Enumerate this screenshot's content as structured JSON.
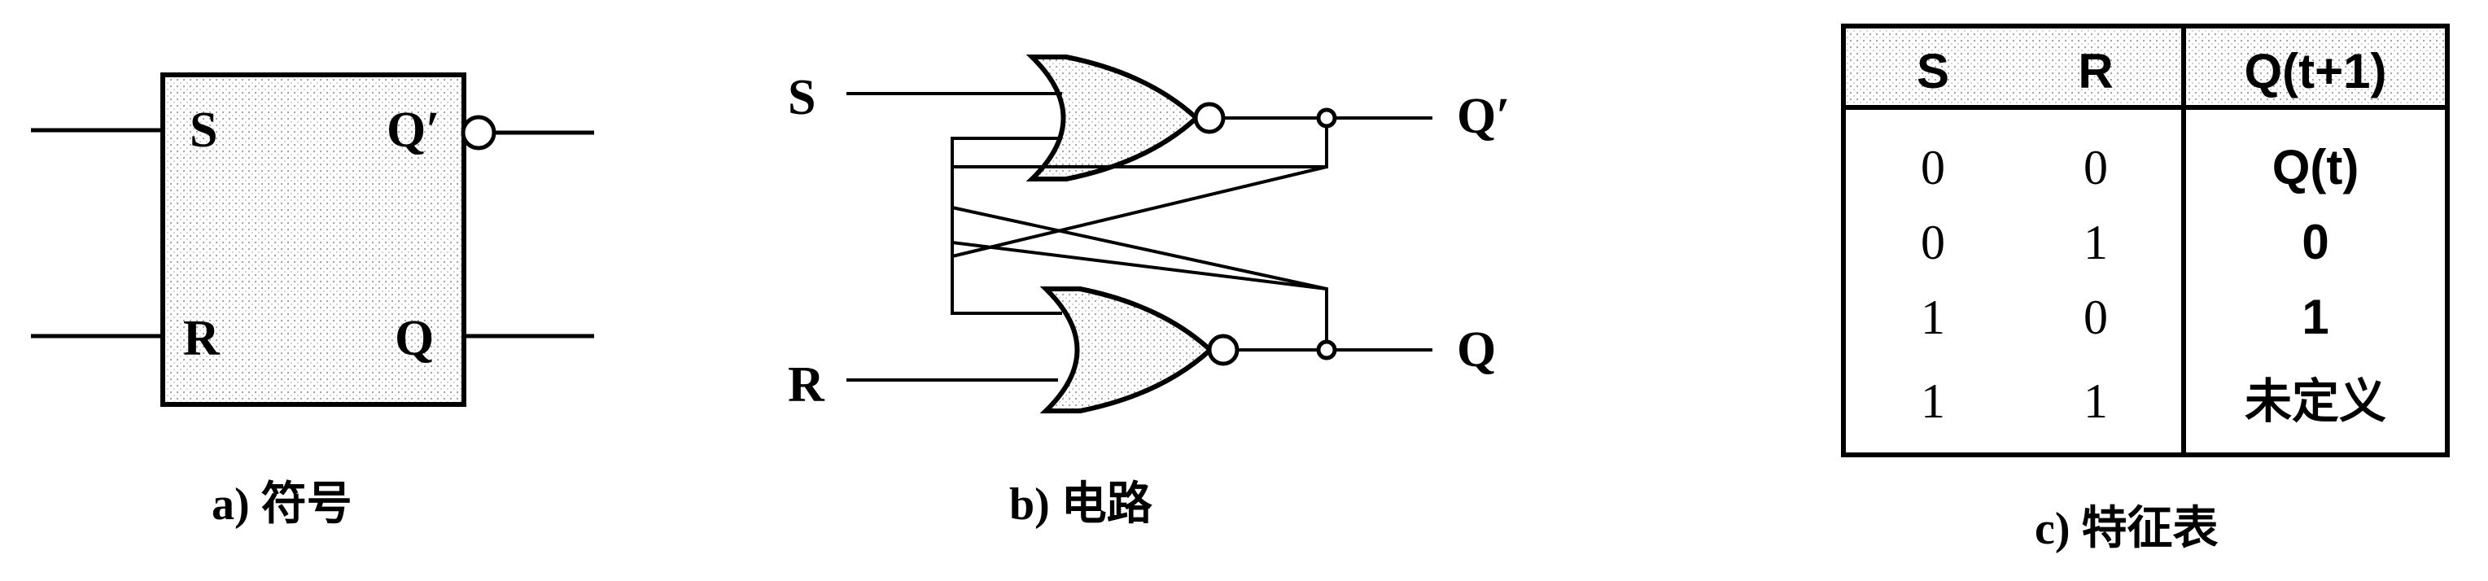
{
  "symbol": {
    "pin_s": "S",
    "pin_r": "R",
    "pin_q_prime": "Q′",
    "pin_q": "Q",
    "caption": "a) 符号"
  },
  "circuit": {
    "input_s": "S",
    "input_r": "R",
    "output_q_prime": "Q′",
    "output_q": "Q",
    "caption": "b) 电路"
  },
  "table": {
    "headers": [
      "S",
      "R",
      "Q(t+1)"
    ],
    "rows": [
      [
        "0",
        "0",
        "Q(t)"
      ],
      [
        "0",
        "1",
        "0"
      ],
      [
        "1",
        "0",
        "1"
      ],
      [
        "1",
        "1",
        "未定义"
      ]
    ],
    "caption": "c) 特征表"
  }
}
